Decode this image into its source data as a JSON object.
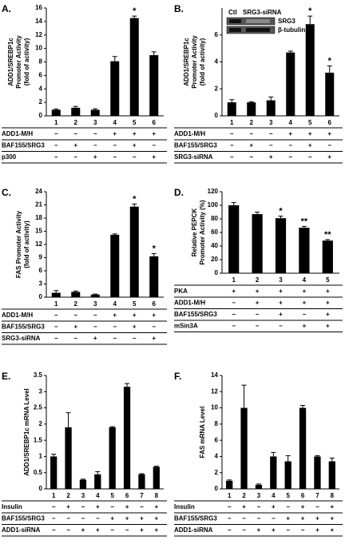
{
  "chart_data": [
    {
      "type": "bar",
      "panel": "A.",
      "ylabel": [
        "ADD1/SREBP1c",
        "Promoter Activity",
        "(fold of activity)"
      ],
      "categories": [
        "1",
        "2",
        "3",
        "4",
        "5",
        "6"
      ],
      "values": [
        0.9,
        1.2,
        0.9,
        8.1,
        14.5,
        9.0
      ],
      "errors": [
        0.1,
        0.2,
        0.15,
        0.7,
        0.3,
        0.5
      ],
      "significance": [
        null,
        null,
        null,
        null,
        "*",
        null
      ],
      "color": "#000000",
      "ylim": [
        0,
        16
      ],
      "yticks": [
        0,
        2,
        4,
        6,
        8,
        10,
        12,
        14,
        16
      ],
      "conditions": [
        {
          "label": "ADD1-M/H",
          "values": [
            "−",
            "−",
            "−",
            "+",
            "+",
            "+"
          ]
        },
        {
          "label": "BAF155/SRG3",
          "values": [
            "−",
            "+",
            "−",
            "−",
            "+",
            "−"
          ]
        },
        {
          "label": "p300",
          "values": [
            "−",
            "−",
            "+",
            "−",
            "−",
            "+"
          ]
        }
      ]
    },
    {
      "type": "bar",
      "panel": "B.",
      "ylabel": [
        "ADD1/SREBP1c",
        "Promoter Activity",
        "(fold of activity)"
      ],
      "categories": [
        "1",
        "2",
        "3",
        "4",
        "5",
        "6"
      ],
      "values": [
        1.0,
        1.0,
        1.15,
        4.7,
        6.8,
        3.2
      ],
      "errors": [
        0.2,
        0.05,
        0.25,
        0.1,
        0.6,
        0.5
      ],
      "significance": [
        null,
        null,
        null,
        null,
        "*",
        "*"
      ],
      "color": "#000000",
      "ylim": [
        0,
        8
      ],
      "yticks": [
        0,
        2,
        4,
        6
      ],
      "inset": {
        "columns": [
          "Ctl",
          "SRG3-siRNA"
        ],
        "rows": [
          "SRG3",
          "β-tubulin"
        ]
      },
      "conditions": [
        {
          "label": "ADD1-M/H",
          "values": [
            "−",
            "−",
            "−",
            "+",
            "+",
            "+"
          ]
        },
        {
          "label": "BAF155/SRG3",
          "values": [
            "−",
            "+",
            "−",
            "−",
            "+",
            "−"
          ]
        },
        {
          "label": "SRG3-siRNA",
          "values": [
            "−",
            "−",
            "+",
            "−",
            "−",
            "+"
          ]
        }
      ]
    },
    {
      "type": "bar",
      "panel": "C.",
      "ylabel": [
        "FAS Promoter Activity",
        "(fold of activity)"
      ],
      "categories": [
        "1",
        "2",
        "3",
        "4",
        "5",
        "6"
      ],
      "values": [
        1.0,
        1.2,
        0.6,
        14.2,
        20.6,
        9.3
      ],
      "errors": [
        0.5,
        0.2,
        0.1,
        0.2,
        0.6,
        0.6
      ],
      "significance": [
        null,
        null,
        null,
        null,
        "*",
        "*"
      ],
      "color": "#000000",
      "ylim": [
        0,
        24
      ],
      "yticks": [
        0,
        3,
        6,
        9,
        12,
        15,
        18,
        21,
        24
      ],
      "conditions": [
        {
          "label": "ADD1-M/H",
          "values": [
            "−",
            "−",
            "−",
            "+",
            "+",
            "+"
          ]
        },
        {
          "label": "BAF155/SRG3",
          "values": [
            "−",
            "+",
            "−",
            "−",
            "+",
            "−"
          ]
        },
        {
          "label": "SRG3-siRNA",
          "values": [
            "−",
            "−",
            "+",
            "−",
            "−",
            "+"
          ]
        }
      ]
    },
    {
      "type": "bar",
      "panel": "D.",
      "ylabel": [
        "Relative PEPCK",
        "Promoter Activity (%)"
      ],
      "categories": [
        "1",
        "2",
        "3",
        "4",
        "5"
      ],
      "values": [
        100,
        87,
        81,
        67,
        48
      ],
      "errors": [
        4,
        3,
        3,
        2,
        1.5
      ],
      "significance": [
        null,
        null,
        "*",
        "**",
        "**"
      ],
      "color": "#000000",
      "ylim": [
        0,
        120
      ],
      "yticks": [
        0,
        20,
        40,
        60,
        80,
        100,
        120
      ],
      "conditions": [
        {
          "label": "PKA",
          "values": [
            "+",
            "+",
            "+",
            "+",
            "+"
          ]
        },
        {
          "label": "ADD1-M/H",
          "values": [
            "−",
            "+",
            "+",
            "+",
            "+"
          ]
        },
        {
          "label": "BAF155/SRG3",
          "values": [
            "−",
            "−",
            "+",
            "−",
            "+"
          ]
        },
        {
          "label": "mSin3A",
          "values": [
            "−",
            "−",
            "−",
            "+",
            "+"
          ]
        }
      ]
    },
    {
      "type": "bar",
      "panel": "E.",
      "ylabel": [
        "ADD1/SREBP1c mRNA Level"
      ],
      "categories": [
        "1",
        "2",
        "3",
        "4",
        "5",
        "6",
        "7",
        "8"
      ],
      "values": [
        1.0,
        1.9,
        0.28,
        0.45,
        1.9,
        3.15,
        0.45,
        0.68
      ],
      "errors": [
        0.07,
        0.45,
        0.02,
        0.08,
        0.02,
        0.1,
        0.02,
        0.02
      ],
      "color": "#000000",
      "ylim": [
        0,
        3.5
      ],
      "yticks": [
        0,
        0.5,
        1,
        1.5,
        2,
        2.5,
        3,
        3.5
      ],
      "conditions": [
        {
          "label": "Insulin",
          "values": [
            "−",
            "+",
            "−",
            "+",
            "−",
            "+",
            "−",
            "+"
          ]
        },
        {
          "label": "BAF155/SRG3",
          "values": [
            "−",
            "−",
            "−",
            "−",
            "+",
            "+",
            "+",
            "+"
          ]
        },
        {
          "label": "ADD1-siRNA",
          "values": [
            "−",
            "−",
            "+",
            "+",
            "−",
            "−",
            "+",
            "+"
          ]
        }
      ]
    },
    {
      "type": "bar",
      "panel": "F.",
      "ylabel": [
        "FAS mRNA Level"
      ],
      "categories": [
        "1",
        "2",
        "3",
        "4",
        "5",
        "6",
        "7",
        "8"
      ],
      "values": [
        1.0,
        10.0,
        0.5,
        4.0,
        3.4,
        10.0,
        4.0,
        3.4
      ],
      "errors": [
        0.1,
        2.8,
        0.1,
        0.5,
        0.7,
        0.3,
        0.1,
        0.4
      ],
      "color": "#000000",
      "ylim": [
        0,
        14
      ],
      "yticks": [
        0,
        2,
        4,
        6,
        8,
        10,
        12,
        14
      ],
      "conditions": [
        {
          "label": "Insulin",
          "values": [
            "−",
            "+",
            "−",
            "+",
            "−",
            "+",
            "−",
            "+"
          ]
        },
        {
          "label": "BAF155/SRG3",
          "values": [
            "−",
            "−",
            "−",
            "−",
            "+",
            "+",
            "+",
            "+"
          ]
        },
        {
          "label": "ADD1-siRNA",
          "values": [
            "−",
            "−",
            "+",
            "+",
            "−",
            "−",
            "+",
            "+"
          ]
        }
      ]
    }
  ]
}
